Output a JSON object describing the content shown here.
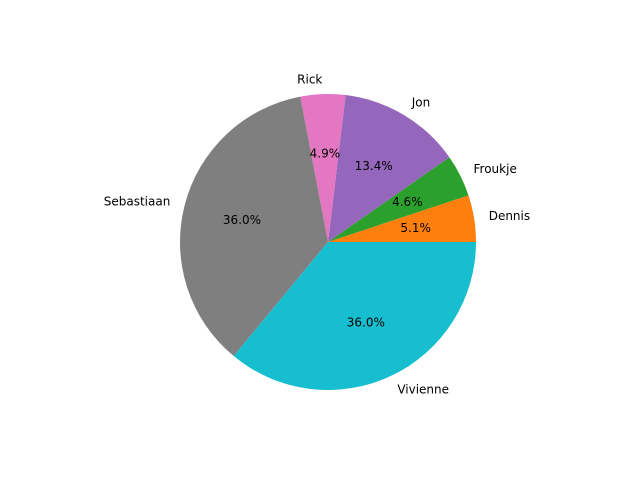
{
  "chart_data": {
    "type": "pie",
    "title": "",
    "slices": [
      {
        "label": "Dennis",
        "percent_label": "5.1%",
        "value": 5.1,
        "color": "#ff7f0e"
      },
      {
        "label": "Froukje",
        "percent_label": "4.6%",
        "value": 4.6,
        "color": "#2ca02c"
      },
      {
        "label": "Jon",
        "percent_label": "13.4%",
        "value": 13.4,
        "color": "#9467bd"
      },
      {
        "label": "Rick",
        "percent_label": "4.9%",
        "value": 4.9,
        "color": "#e377c2"
      },
      {
        "label": "Sebastiaan",
        "percent_label": "36.0%",
        "value": 36.0,
        "color": "#7f7f7f"
      },
      {
        "label": "Vivienne",
        "percent_label": "36.0%",
        "value": 36.0,
        "color": "#17becf"
      }
    ],
    "start_angle_deg": 0,
    "direction": "counterclockwise"
  }
}
